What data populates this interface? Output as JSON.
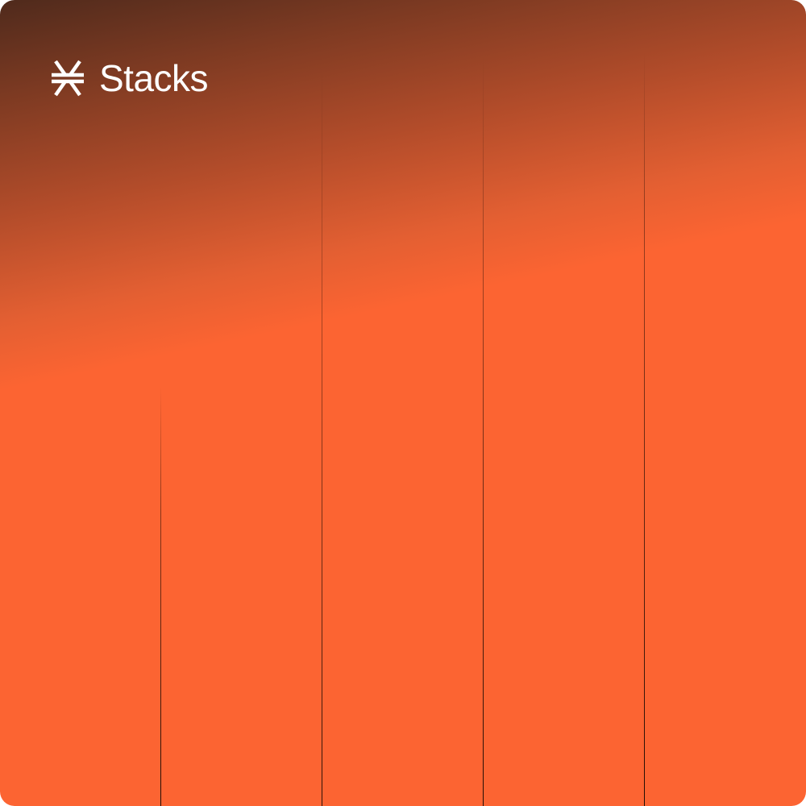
{
  "brand": {
    "name": "Stacks",
    "icon": "stacks-logo-icon",
    "text_color": "#ffffff"
  },
  "colors": {
    "accent": "#fc6432",
    "gradient_dark": "#4f2a1c"
  }
}
